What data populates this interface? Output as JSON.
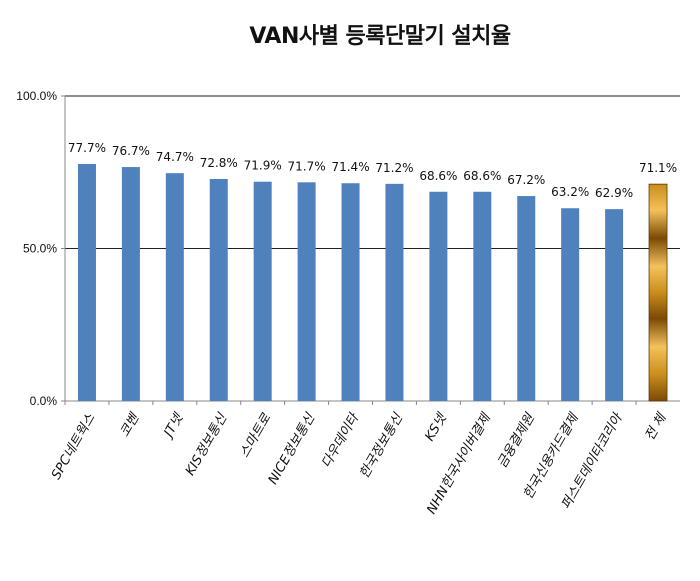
{
  "chart_data": {
    "type": "bar",
    "title": "VAN사별 등록단말기 설치율",
    "xlabel": "",
    "ylabel": "",
    "ylim": [
      0,
      100
    ],
    "yticks": [
      {
        "value": 0,
        "label": "0.0%"
      },
      {
        "value": 50,
        "label": "50.0%"
      },
      {
        "value": 100,
        "label": "100.0%"
      }
    ],
    "grid": true,
    "categories": [
      "SPC네트웍스",
      "코벤",
      "JT넷",
      "KIS정보통신",
      "스마트로",
      "NICE정보통신",
      "다우데이타",
      "한국정보통신",
      "KS넷",
      "NHN한국사이버결제",
      "금융결제원",
      "한국신용카드결제",
      "퍼스트데이타코리아",
      "전 체"
    ],
    "values": [
      77.7,
      76.7,
      74.7,
      72.8,
      71.9,
      71.7,
      71.4,
      71.2,
      68.6,
      68.6,
      67.2,
      63.2,
      62.9,
      71.1
    ],
    "data_labels": [
      "77.7%",
      "76.7%",
      "74.7%",
      "72.8%",
      "71.9%",
      "71.7%",
      "71.4%",
      "71.2%",
      "68.6%",
      "68.6%",
      "67.2%",
      "63.2%",
      "62.9%",
      "71.1%"
    ],
    "highlight_index": 13,
    "colors": {
      "bar": "#4f81bd",
      "highlight_dark": "#7a4a05",
      "highlight_mid": "#c98d1a",
      "highlight_light": "#f4c25a",
      "axis": "#888888",
      "grid": "#222222"
    }
  }
}
